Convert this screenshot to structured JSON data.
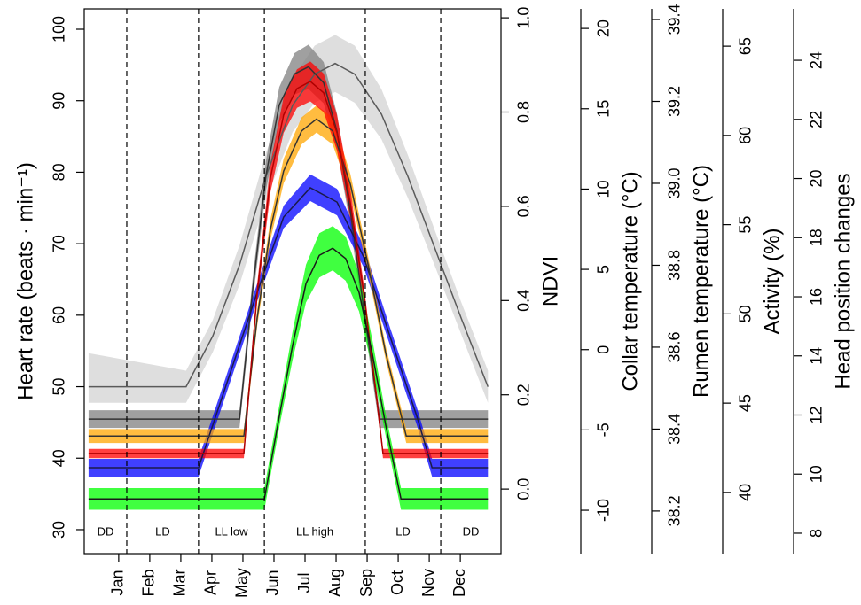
{
  "chart_data": {
    "type": "line",
    "categories": [
      "Jan",
      "Feb",
      "Mar",
      "Apr",
      "May",
      "Jun",
      "Jul",
      "Aug",
      "Sep",
      "Oct",
      "Nov",
      "Dec"
    ],
    "xlim": [
      -0.11,
      13.31
    ],
    "dividers": [
      1.26,
      3.57,
      5.69,
      8.94,
      11.37
    ],
    "periods": [
      "DD",
      "LD",
      "LL low",
      "LL high",
      "LD",
      "DD"
    ],
    "axes": [
      {
        "title": "Heart rate (beats · min⁻¹)",
        "color": "#ff0000",
        "lim": [
          26.65,
          102.85
        ],
        "ticks": [
          30,
          40,
          50,
          60,
          70,
          80,
          90,
          100
        ]
      },
      {
        "title": "NDVI",
        "color": "#00ff00",
        "lim": [
          -0.137,
          1.019
        ],
        "ticks": [
          {
            "value": 0,
            "label": "0.0"
          },
          0.2,
          0.4,
          0.6,
          0.8,
          {
            "value": 1,
            "label": "1.0"
          }
        ]
      },
      {
        "title": "Collar temperature (°C)",
        "color": "#0000ff",
        "lim": [
          -12.7,
          21.22
        ],
        "ticks": [
          -10,
          -5,
          0,
          5,
          10,
          15,
          20
        ]
      },
      {
        "title": "Rumen temperature (°C)",
        "color": "#ffa500",
        "lim": [
          38.096,
          39.426
        ],
        "ticks": [
          38.2,
          38.4,
          38.6,
          38.8,
          {
            "value": 39,
            "label": "39.0"
          },
          39.2,
          39.4
        ]
      },
      {
        "title": "Activity (%)",
        "color": "#c8c8c8",
        "lim": [
          36.57,
          67.09
        ],
        "ticks": [
          40,
          45,
          50,
          55,
          60,
          65
        ]
      },
      {
        "title": "Head position changes",
        "color": "#000000",
        "lim": [
          7.31,
          25.74
        ],
        "ticks": [
          8,
          10,
          12,
          14,
          16,
          18,
          20,
          22,
          24
        ]
      }
    ],
    "series": [
      {
        "axis": 4,
        "color": "#d3d3d3",
        "line_color": "#5a5a5a",
        "x": [
          0.03,
          3.17,
          4.03,
          4.89,
          5.74,
          6.6,
          7.31,
          7.97,
          8.6,
          9.46,
          10.31,
          11.17,
          12.03,
          12.89
        ],
        "values": [
          45.92,
          45.92,
          48.76,
          52.74,
          57.71,
          61.69,
          63.43,
          64.03,
          63.43,
          61.19,
          57.71,
          53.73,
          49.75,
          45.92
        ],
        "lower": [
          45.02,
          45.02,
          47.86,
          51.64,
          56.41,
          60.19,
          61.83,
          62.43,
          61.83,
          59.79,
          56.51,
          52.73,
          48.85,
          45.02
        ],
        "upper": [
          47.8,
          46.82,
          49.66,
          53.84,
          59.01,
          63.19,
          65.03,
          65.63,
          65.03,
          62.59,
          58.91,
          54.73,
          50.65,
          46.82
        ]
      },
      {
        "axis": 5,
        "color": "#808080",
        "line_color": "#333333",
        "x": [
          0.03,
          4.89,
          5.31,
          5.74,
          6.17,
          6.66,
          7.11,
          7.6,
          8.03,
          8.46,
          8.89,
          9.4,
          12.89
        ],
        "values": [
          11.86,
          11.86,
          16.2,
          20.1,
          22.49,
          23.54,
          23.78,
          23.24,
          21.59,
          18.9,
          15.6,
          11.86,
          11.86
        ],
        "lower": [
          11.56,
          11.56,
          15.8,
          19.6,
          21.89,
          22.84,
          23.03,
          22.54,
          20.99,
          18.4,
          15.2,
          11.56,
          11.56
        ],
        "upper": [
          12.16,
          12.16,
          16.6,
          20.6,
          23.09,
          24.24,
          24.53,
          23.94,
          22.19,
          19.4,
          16.0,
          12.16,
          12.16
        ]
      },
      {
        "axis": 2,
        "color": "#0000ff",
        "line_color": "#1a1a4a",
        "x": [
          0.03,
          3.57,
          4.6,
          5.46,
          6.31,
          7.17,
          8.03,
          8.89,
          9.74,
          10.6,
          11.09,
          12.89
        ],
        "values": [
          -7.35,
          -7.35,
          -1.4,
          3.57,
          8.26,
          10.08,
          9.19,
          5.77,
          0.81,
          -4.15,
          -7.35,
          -7.35
        ],
        "lower": [
          -7.9,
          -7.9,
          -1.95,
          3.02,
          7.56,
          9.25,
          8.36,
          5.12,
          0.26,
          -4.7,
          -7.9,
          -7.9
        ],
        "upper": [
          -6.8,
          -6.8,
          -0.85,
          4.12,
          8.96,
          10.91,
          10.02,
          6.42,
          1.36,
          -3.6,
          -6.8,
          -6.8
        ]
      },
      {
        "axis": 3,
        "color": "#ffa500",
        "line_color": "#333333",
        "x": [
          0.03,
          5.03,
          5.46,
          5.89,
          6.31,
          6.89,
          7.37,
          7.89,
          8.46,
          9.03,
          9.6,
          10.26,
          12.89
        ],
        "values": [
          38.383,
          38.383,
          38.672,
          38.889,
          39.03,
          39.128,
          39.157,
          39.128,
          38.998,
          38.802,
          38.585,
          38.383,
          38.383
        ],
        "lower": [
          38.366,
          38.366,
          38.652,
          38.864,
          39.0,
          39.095,
          39.124,
          39.095,
          38.973,
          38.782,
          38.568,
          38.366,
          38.366
        ],
        "upper": [
          38.4,
          38.4,
          38.692,
          38.914,
          39.06,
          39.161,
          39.19,
          39.161,
          39.023,
          38.822,
          38.602,
          38.4,
          38.4
        ]
      },
      {
        "axis": 0,
        "color": "#ff0000",
        "line_color": "#b00000",
        "x": [
          0.03,
          5.03,
          5.46,
          5.89,
          6.31,
          6.74,
          7.17,
          7.6,
          8.03,
          8.46,
          8.89,
          9.31,
          9.51,
          12.89
        ],
        "values": [
          40.66,
          40.66,
          63.2,
          79.3,
          88.0,
          91.7,
          92.7,
          91.1,
          85.5,
          75.6,
          63.2,
          48.3,
          40.66,
          40.66
        ],
        "lower": [
          40.0,
          40.0,
          62.0,
          77.3,
          85.5,
          89.0,
          89.9,
          88.4,
          83.0,
          73.6,
          62.0,
          47.5,
          40.0,
          40.0
        ],
        "upper": [
          41.3,
          41.3,
          64.4,
          81.3,
          90.5,
          94.4,
          95.5,
          93.8,
          88.0,
          77.6,
          64.4,
          49.1,
          41.3,
          41.3
        ]
      },
      {
        "axis": 1,
        "color": "#00ff00",
        "line_color": "#1a1a1a",
        "x": [
          0.03,
          5.69,
          6.17,
          6.6,
          7.03,
          7.46,
          7.89,
          8.31,
          8.74,
          9.17,
          9.6,
          10.09,
          12.89
        ],
        "values": [
          -0.021,
          -0.021,
          0.154,
          0.305,
          0.436,
          0.496,
          0.511,
          0.489,
          0.417,
          0.286,
          0.135,
          -0.021,
          -0.021
        ],
        "lower": [
          -0.044,
          -0.044,
          0.131,
          0.275,
          0.396,
          0.449,
          0.464,
          0.442,
          0.377,
          0.256,
          0.112,
          -0.044,
          -0.044
        ],
        "upper": [
          0.002,
          0.002,
          0.177,
          0.335,
          0.476,
          0.543,
          0.558,
          0.536,
          0.457,
          0.316,
          0.158,
          0.002,
          0.002
        ]
      }
    ]
  }
}
